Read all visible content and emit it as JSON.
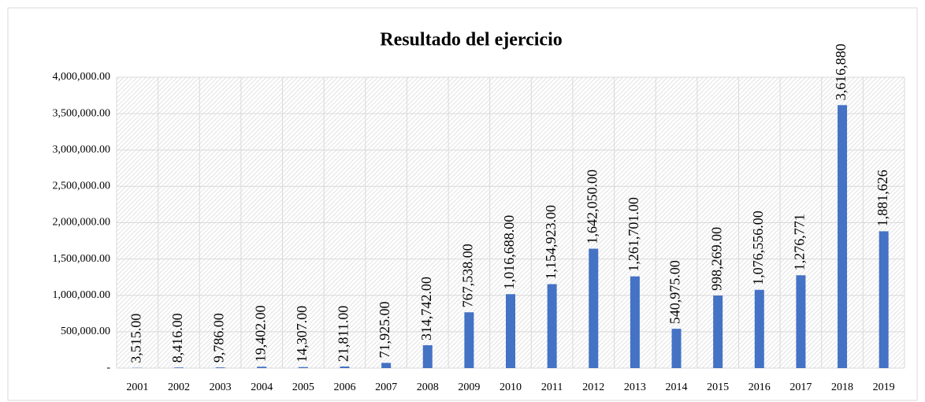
{
  "chart_data": {
    "type": "bar",
    "title": "Resultado del ejercicio",
    "categories": [
      "2001",
      "2002",
      "2003",
      "2004",
      "2005",
      "2006",
      "2007",
      "2008",
      "2009",
      "2010",
      "2011",
      "2012",
      "2013",
      "2014",
      "2015",
      "2016",
      "2017",
      "2018",
      "2019"
    ],
    "values": [
      3515,
      8416,
      9786,
      19402,
      14307,
      21811,
      71925,
      314742,
      767538,
      1016688,
      1154923,
      1642050,
      1261701,
      540975,
      998269,
      1076556,
      1276771,
      3616880,
      1881626
    ],
    "value_labels": [
      "3,515.00",
      "8,416.00",
      "9,786.00",
      "19,402.00",
      "14,307.00",
      "21,811.00",
      "71,925.00",
      "314,742.00",
      "767,538.00",
      "1,016,688.00",
      "1,154,923.00",
      "1,642,050.00",
      "1,261,701.00",
      "540,975.00",
      "998,269.00",
      "1,076,556.00",
      "1,276,771",
      "3,616,880",
      "1,881,626"
    ],
    "color": "#4472c4",
    "ylim": [
      0,
      4000000
    ],
    "yticks": [
      {
        "value": 0,
        "label": "-"
      },
      {
        "value": 500000,
        "label": "500,000.00"
      },
      {
        "value": 1000000,
        "label": "1,000,000.00"
      },
      {
        "value": 1500000,
        "label": "1,500,000.00"
      },
      {
        "value": 2000000,
        "label": "2,000,000.00"
      },
      {
        "value": 2500000,
        "label": "2,500,000.00"
      },
      {
        "value": 3000000,
        "label": "3,000,000.00"
      },
      {
        "value": 3500000,
        "label": "3,500,000.00"
      },
      {
        "value": 4000000,
        "label": "4,000,000.00"
      }
    ],
    "grid": true
  }
}
